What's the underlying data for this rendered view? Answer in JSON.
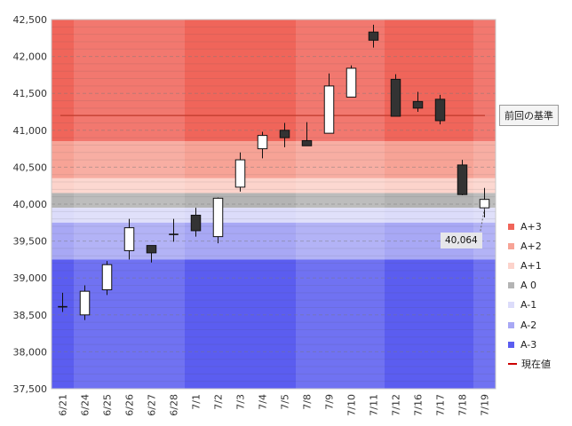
{
  "chart_data": {
    "type": "candlestick",
    "x_labels": [
      "6/21",
      "6/24",
      "6/25",
      "6/26",
      "6/27",
      "6/28",
      "7/1",
      "7/2",
      "7/3",
      "7/4",
      "7/5",
      "7/8",
      "7/9",
      "7/10",
      "7/11",
      "7/12",
      "7/16",
      "7/17",
      "7/18",
      "7/19"
    ],
    "candles": [
      {
        "o": 38610,
        "h": 38800,
        "l": 38540,
        "c": 38610
      },
      {
        "o": 38500,
        "h": 38900,
        "l": 38430,
        "c": 38820
      },
      {
        "o": 38840,
        "h": 39230,
        "l": 38770,
        "c": 39180
      },
      {
        "o": 39370,
        "h": 39800,
        "l": 39250,
        "c": 39680
      },
      {
        "o": 39440,
        "h": 39440,
        "l": 39210,
        "c": 39340
      },
      {
        "o": 39590,
        "h": 39800,
        "l": 39490,
        "c": 39590
      },
      {
        "o": 39850,
        "h": 39950,
        "l": 39560,
        "c": 39640
      },
      {
        "o": 39560,
        "h": 40090,
        "l": 39470,
        "c": 40080
      },
      {
        "o": 40230,
        "h": 40700,
        "l": 40170,
        "c": 40600
      },
      {
        "o": 40750,
        "h": 40980,
        "l": 40620,
        "c": 40930
      },
      {
        "o": 41000,
        "h": 41100,
        "l": 40770,
        "c": 40900
      },
      {
        "o": 40860,
        "h": 41110,
        "l": 40790,
        "c": 40790
      },
      {
        "o": 40960,
        "h": 41770,
        "l": 40960,
        "c": 41600
      },
      {
        "o": 41450,
        "h": 41880,
        "l": 41450,
        "c": 41840
      },
      {
        "o": 42330,
        "h": 42430,
        "l": 42120,
        "c": 42220
      },
      {
        "o": 41690,
        "h": 41760,
        "l": 41190,
        "c": 41190
      },
      {
        "o": 41390,
        "h": 41520,
        "l": 41250,
        "c": 41300
      },
      {
        "o": 41420,
        "h": 41480,
        "l": 41080,
        "c": 41130
      },
      {
        "o": 40530,
        "h": 40600,
        "l": 40120,
        "c": 40130
      },
      {
        "o": 39950,
        "h": 40220,
        "l": 39820,
        "c": 40064
      }
    ],
    "ylim": [
      37500,
      42500
    ],
    "y_ticks": [
      "37,500",
      "38,000",
      "38,500",
      "39,000",
      "39,500",
      "40,000",
      "40,500",
      "41,000",
      "41,500",
      "42,000",
      "42,500"
    ],
    "y_tick_values": [
      37500,
      38000,
      38500,
      39000,
      39500,
      40000,
      40500,
      41000,
      41500,
      42000,
      42500
    ],
    "reference_level": 41200,
    "bands": [
      {
        "name": "A+3",
        "from": 40850,
        "to": 42500,
        "color": "#f0655a"
      },
      {
        "name": "A+2",
        "from": 40350,
        "to": 40850,
        "color": "#f7a396"
      },
      {
        "name": "A+1",
        "from": 40150,
        "to": 40350,
        "color": "#fcd3cb"
      },
      {
        "name": "A 0",
        "from": 39950,
        "to": 40150,
        "color": "#b4b4b4"
      },
      {
        "name": "A-1",
        "from": 39750,
        "to": 39950,
        "color": "#dcdcfa"
      },
      {
        "name": "A-2",
        "from": 39250,
        "to": 39750,
        "color": "#a8a8f5"
      },
      {
        "name": "A-3",
        "from": 37500,
        "to": 39250,
        "color": "#5b5df0"
      }
    ],
    "current_price_color": "#cc0000"
  },
  "legend": [
    {
      "label": "A+3",
      "color": "#f0655a",
      "kind": "swatch"
    },
    {
      "label": "A+2",
      "color": "#f7a396",
      "kind": "swatch"
    },
    {
      "label": "A+1",
      "color": "#fcd3cb",
      "kind": "swatch"
    },
    {
      "label": "A 0",
      "color": "#b4b4b4",
      "kind": "swatch"
    },
    {
      "label": "A-1",
      "color": "#dcdcfa",
      "kind": "swatch"
    },
    {
      "label": "A-2",
      "color": "#a8a8f5",
      "kind": "swatch"
    },
    {
      "label": "A-3",
      "color": "#5b5df0",
      "kind": "swatch"
    },
    {
      "label": "現在値",
      "color": "#cc0000",
      "kind": "line"
    }
  ],
  "reference_label": "前回の基準",
  "current_value_label": "40,064"
}
